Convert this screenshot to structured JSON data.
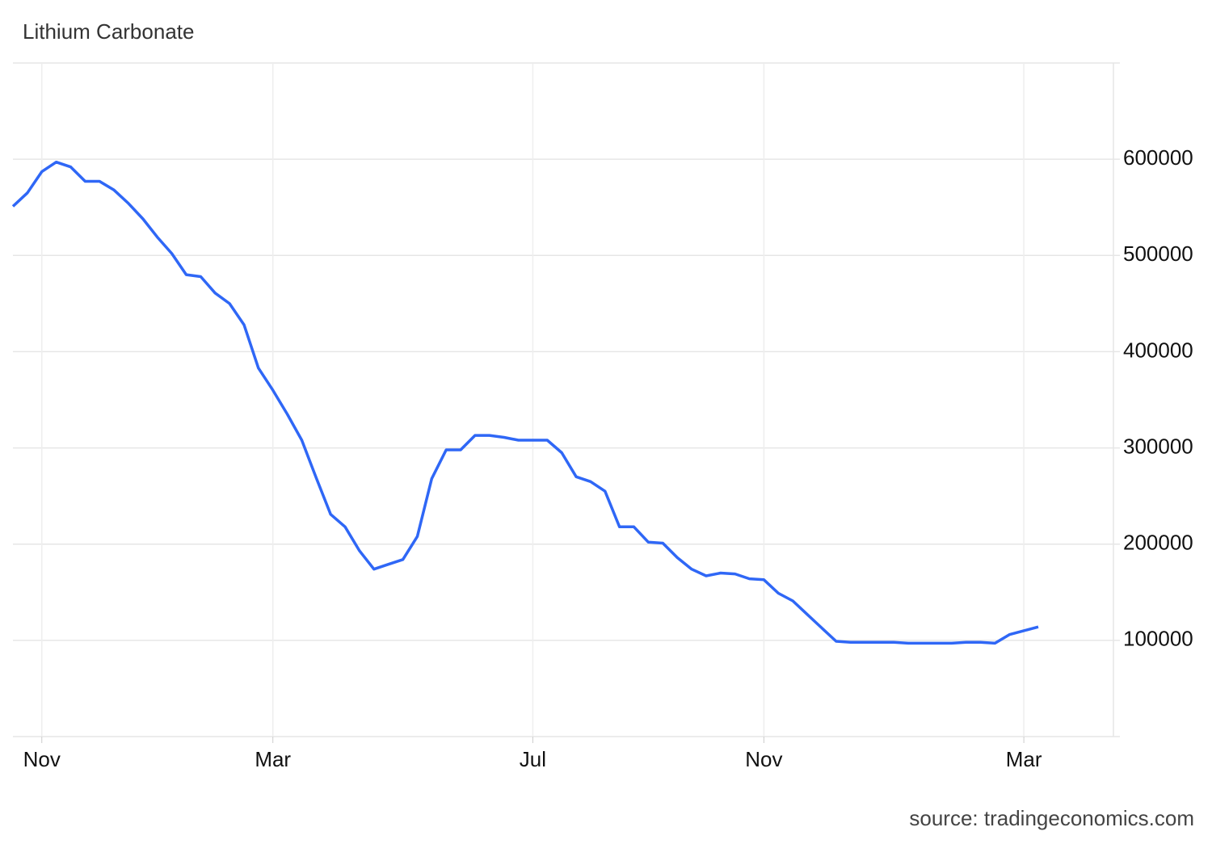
{
  "chart_data": {
    "type": "line",
    "title": "Lithium Carbonate",
    "source": "source: tradingeconomics.com",
    "categories": [
      null,
      null,
      "Nov",
      null,
      null,
      null,
      null,
      null,
      null,
      null,
      null,
      null,
      null,
      null,
      null,
      null,
      null,
      null,
      "Mar",
      null,
      null,
      null,
      null,
      null,
      null,
      null,
      null,
      null,
      null,
      null,
      null,
      null,
      null,
      null,
      null,
      null,
      "Jul",
      null,
      null,
      null,
      null,
      null,
      null,
      null,
      null,
      null,
      null,
      null,
      null,
      null,
      null,
      null,
      "Nov",
      null,
      null,
      null,
      null,
      null,
      null,
      null,
      null,
      null,
      null,
      null,
      null,
      null,
      null,
      null,
      null,
      null,
      "Mar",
      null
    ],
    "series": [
      {
        "name": "Lithium Carbonate",
        "color": "#2f67f6",
        "values": [
          551000,
          565000,
          587000,
          597000,
          592000,
          577000,
          577000,
          568000,
          554000,
          538000,
          519000,
          502000,
          480000,
          478000,
          461000,
          450000,
          428000,
          383000,
          360000,
          335000,
          308000,
          269000,
          231000,
          218000,
          193000,
          174000,
          179000,
          184000,
          208000,
          268000,
          298000,
          298000,
          313000,
          313000,
          311000,
          308000,
          308000,
          308000,
          295000,
          270000,
          265000,
          255000,
          218000,
          218000,
          202000,
          201000,
          186000,
          174000,
          167000,
          170000,
          169000,
          164000,
          163000,
          149000,
          141000,
          127000,
          113000,
          99000,
          98000,
          98000,
          98000,
          98000,
          97000,
          97000,
          97000,
          97000,
          98000,
          98000,
          97000,
          106000,
          110000,
          114000
        ]
      }
    ],
    "ylim": [
      0,
      700000
    ],
    "yticks": [
      100000,
      200000,
      300000,
      400000,
      500000,
      600000
    ],
    "grid": true
  }
}
